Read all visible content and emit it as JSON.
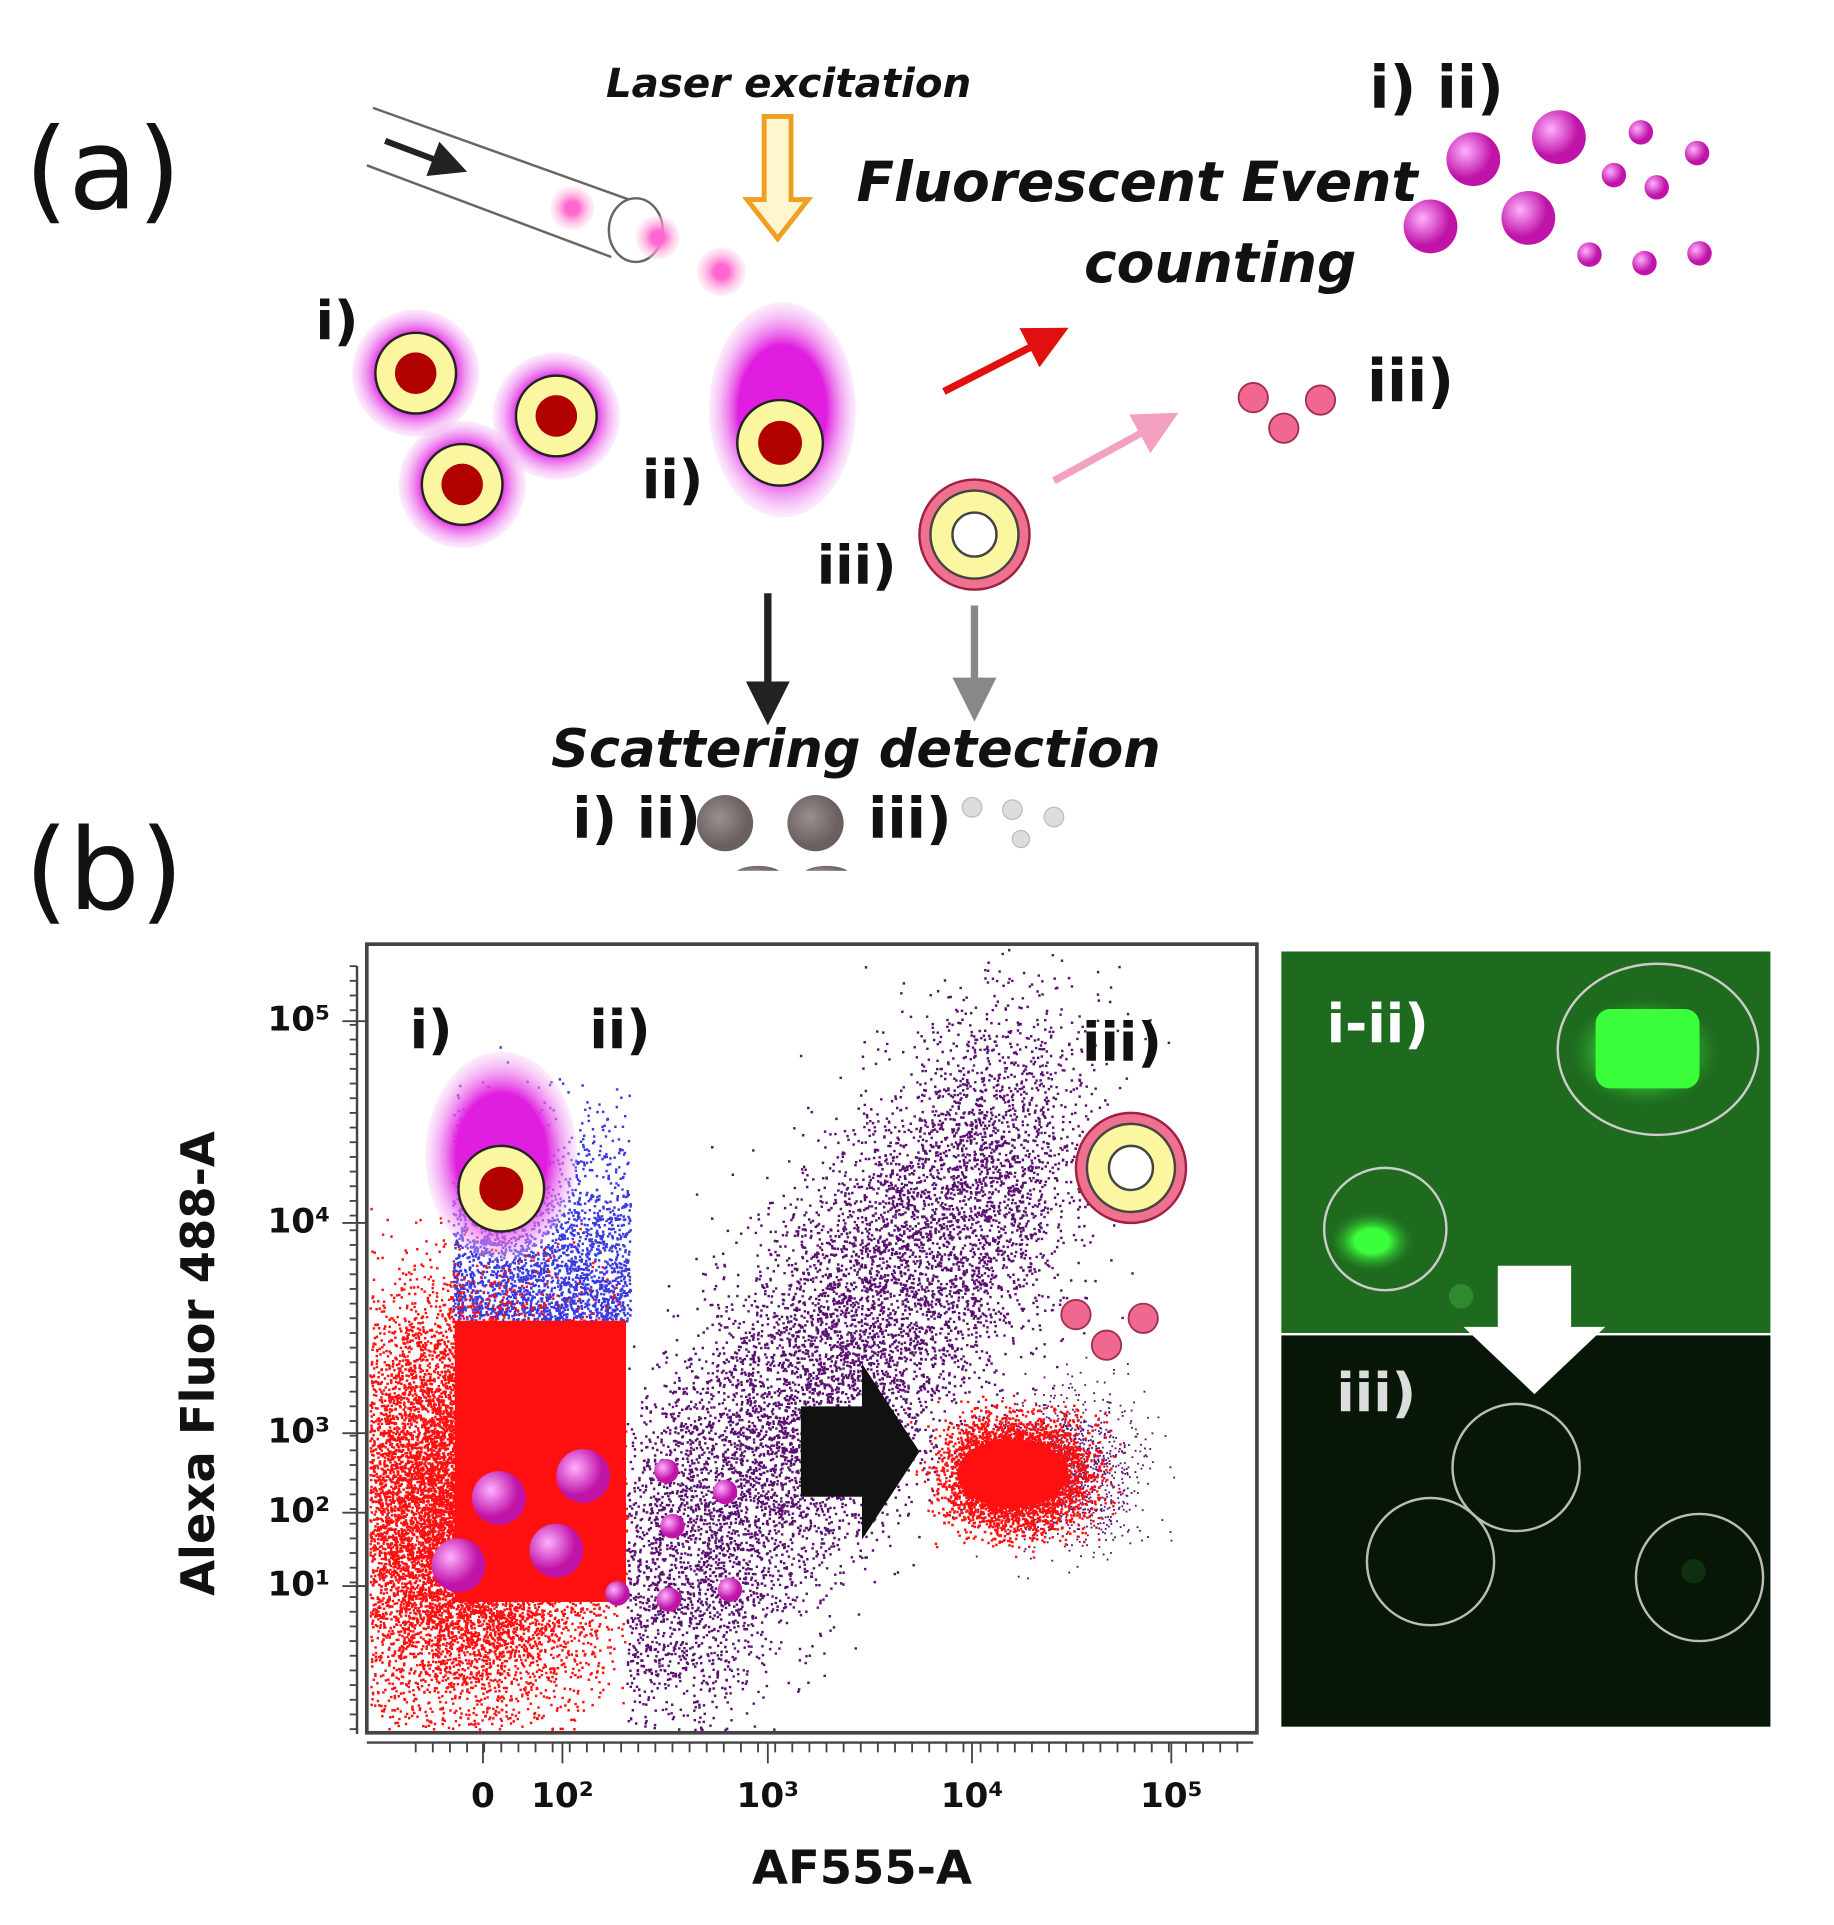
{
  "panel_a": {
    "label": "(a)",
    "laser": "Laser excitation",
    "fluorescent_line1": "Fluorescent Event",
    "fluorescent_line2": "counting",
    "cell_labels": [
      "i)",
      "ii)",
      "iii)"
    ],
    "fluorescent_group_label": "i)  ii)",
    "fluorescent_small_label": "iii)",
    "scattering": "Scattering detection",
    "scattering_group_label": "i) ii)",
    "scattering_small_label": "iii)"
  },
  "panel_b": {
    "label": "(b)",
    "y_axis_label": "Alexa Fluor  488-A",
    "x_axis_label": "AF555-A",
    "y_ticks": [
      "10⁵",
      "10⁴",
      "10³",
      "10²",
      "10¹"
    ],
    "x_ticks": [
      "0",
      "10²",
      "10³",
      "10⁴",
      "10⁵"
    ],
    "plot_labels": [
      "i)",
      "ii)",
      "iii)"
    ],
    "micrograph_labels": [
      "i-ii)",
      "iii)"
    ]
  }
}
